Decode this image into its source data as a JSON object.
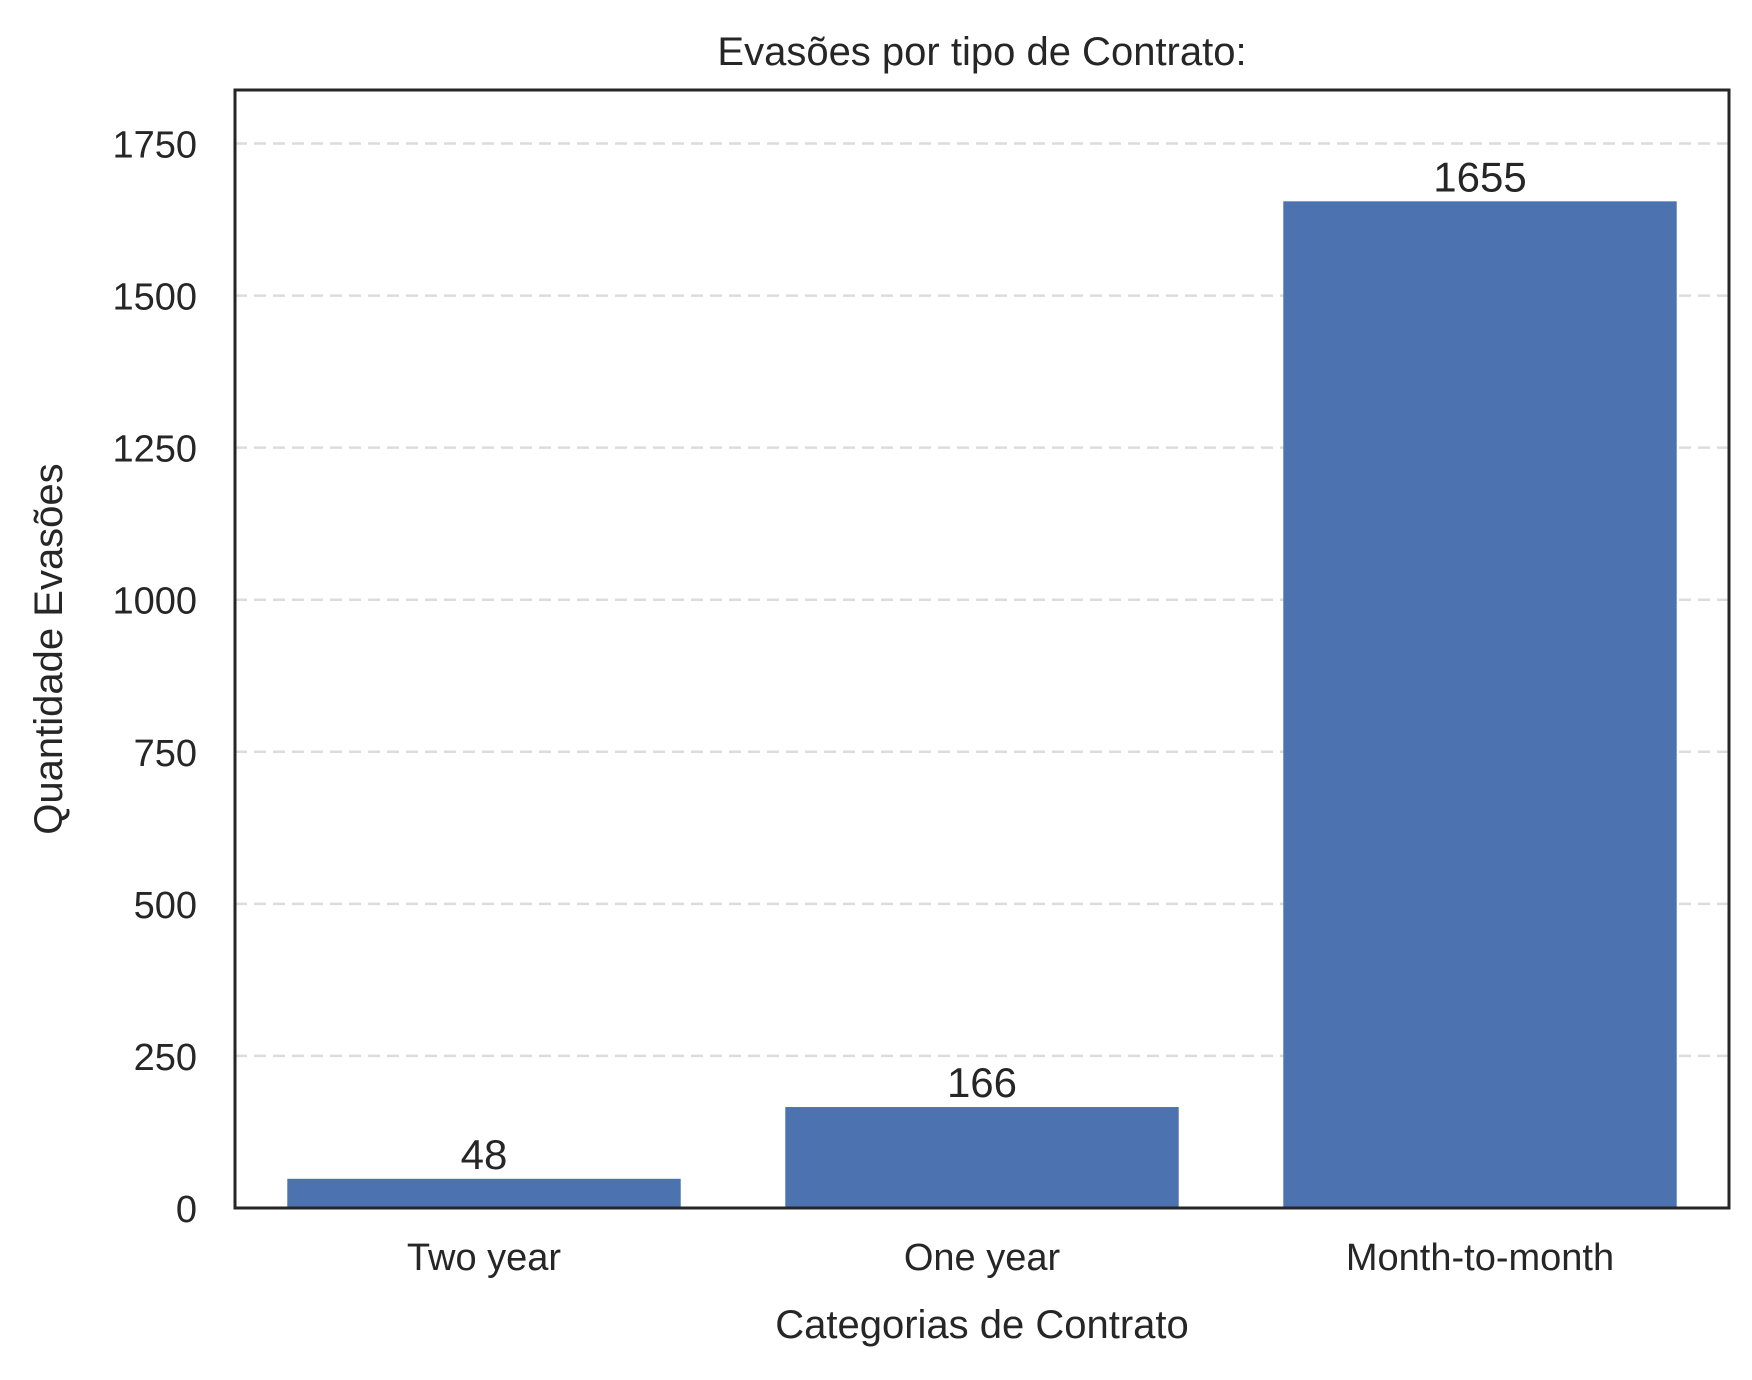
{
  "chart_data": {
    "type": "bar",
    "title": "Evasões por tipo de Contrato:",
    "xlabel": "Categorias de Contrato",
    "ylabel": "Quantidade Evasões",
    "categories": [
      "Two year",
      "One year",
      "Month-to-month"
    ],
    "values": [
      48,
      166,
      1655
    ],
    "value_labels": [
      "48",
      "166",
      "1655"
    ],
    "ylim": [
      0,
      1838
    ],
    "yticks": [
      0,
      250,
      500,
      750,
      1000,
      1250,
      1500,
      1750
    ],
    "ytick_labels": [
      "0",
      "250",
      "500",
      "750",
      "1000",
      "1250",
      "1500",
      "1750"
    ],
    "grid": "horizontal dashed",
    "legend": "none",
    "colors": {
      "bar": "#4c72b0",
      "grid": "#dcdcdc",
      "frame": "#262626",
      "text": "#262626"
    }
  }
}
